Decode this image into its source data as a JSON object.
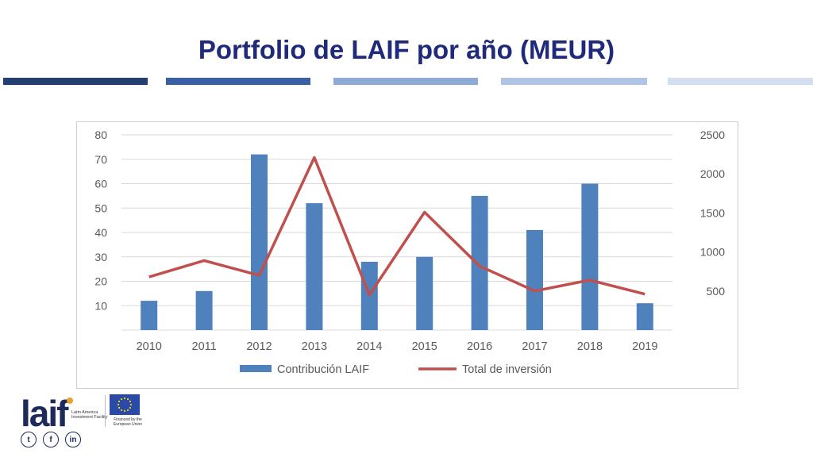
{
  "slide": {
    "title": "Portfolio de LAIF por año (MEUR)",
    "stripe_colors": [
      "#243f73",
      "#3a5fa3",
      "#8eaad6",
      "#b0c4e6",
      "#d4def1"
    ]
  },
  "chart_data": {
    "type": "bar+line",
    "categories": [
      "2010",
      "2011",
      "2012",
      "2013",
      "2014",
      "2015",
      "2016",
      "2017",
      "2018",
      "2019"
    ],
    "series": [
      {
        "name": "Contribución LAIF",
        "type": "bar",
        "axis": "left",
        "color": "#4f81bd",
        "values": [
          12,
          16,
          72,
          52,
          28,
          30,
          55,
          41,
          60,
          11
        ]
      },
      {
        "name": "Total de inversión",
        "type": "line",
        "axis": "right",
        "color": "#c0504d",
        "values": [
          680,
          890,
          700,
          2210,
          450,
          1510,
          820,
          500,
          640,
          460
        ]
      }
    ],
    "y_left": {
      "ylim": [
        0,
        80
      ],
      "ticks": [
        "10",
        "20",
        "30",
        "40",
        "50",
        "60",
        "70",
        "80"
      ]
    },
    "y_right": {
      "ylim": [
        0,
        2500
      ],
      "ticks": [
        "500",
        "1000",
        "1500",
        "2000",
        "2500"
      ]
    },
    "grid": true,
    "legend_position": "bottom"
  },
  "footer": {
    "logo_text": "laif",
    "logo_dot_color": "#e6a22a",
    "logo_subtitle": "Latin America Investment Facility",
    "eu_caption": "Financed by the European Union",
    "social_icons": [
      "twitter-icon",
      "facebook-icon",
      "linkedin-icon"
    ]
  }
}
